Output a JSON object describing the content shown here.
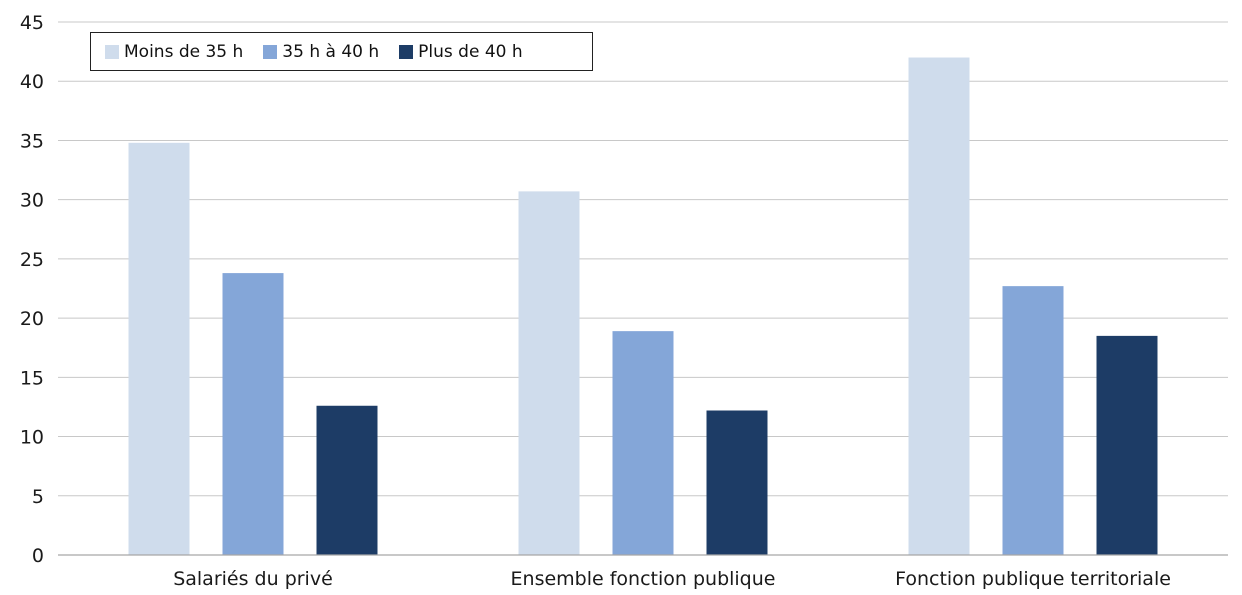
{
  "chart_data": {
    "type": "bar",
    "categories": [
      "Salariés du privé",
      "Ensemble fonction publique",
      "Fonction publique territoriale"
    ],
    "series": [
      {
        "name": "Moins de 35 h",
        "color": "#cfdcec",
        "values": [
          34.8,
          30.7,
          42.0
        ]
      },
      {
        "name": "35 h à 40 h",
        "color": "#84a6d8",
        "values": [
          23.8,
          18.9,
          22.7
        ]
      },
      {
        "name": "Plus de 40 h",
        "color": "#1d3c66",
        "values": [
          12.6,
          12.2,
          18.5
        ]
      }
    ],
    "ylim": [
      0,
      45
    ],
    "yticks": [
      "0",
      "5",
      "10",
      "15",
      "20",
      "25",
      "30",
      "35",
      "40",
      "45"
    ],
    "grid": true,
    "legend_position": "top-left"
  }
}
